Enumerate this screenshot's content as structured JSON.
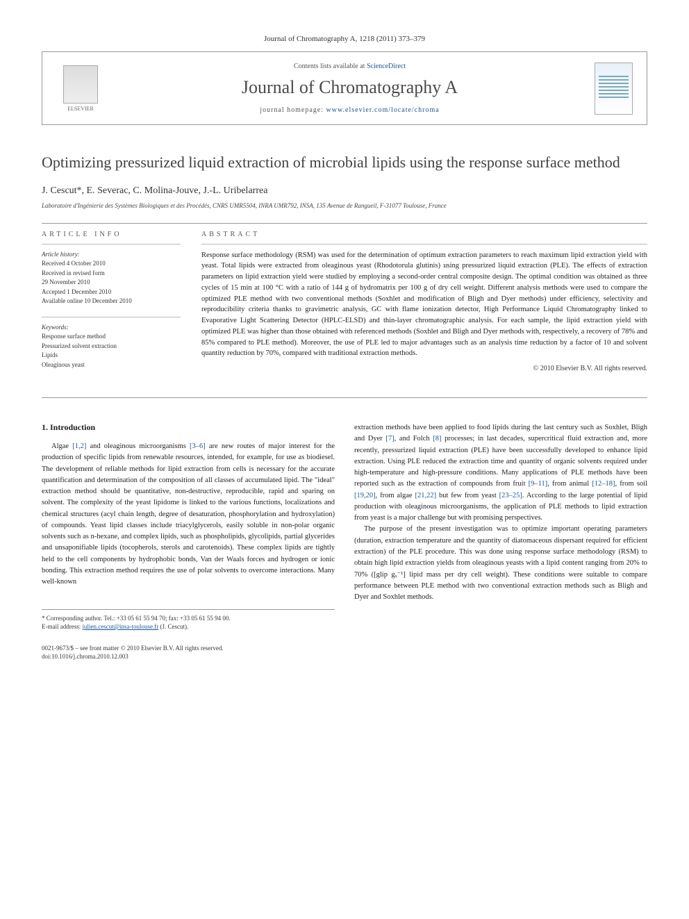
{
  "journal_header": "Journal of Chromatography A, 1218 (2011) 373–379",
  "header": {
    "elsevier_label": "ELSEVIER",
    "contents_prefix": "Contents lists available at ",
    "contents_link": "ScienceDirect",
    "journal_name": "Journal of Chromatography A",
    "homepage_prefix": "journal homepage: ",
    "homepage_url": "www.elsevier.com/locate/chroma"
  },
  "title": "Optimizing pressurized liquid extraction of microbial lipids using the response surface method",
  "authors": "J. Cescut*, E. Severac, C. Molina-Jouve, J.-L. Uribelarrea",
  "affiliation": "Laboratoire d'Ingénierie des Systèmes Biologiques et des Procédés, CNRS UMR5504, INRA UMR792, INSA, 135 Avenue de Rangueil, F-31077 Toulouse, France",
  "info": {
    "heading": "ARTICLE INFO",
    "history_label": "Article history:",
    "history": [
      "Received 4 October 2010",
      "Received in revised form",
      "29 November 2010",
      "Accepted 1 December 2010",
      "Available online 10 December 2010"
    ],
    "keywords_label": "Keywords:",
    "keywords": [
      "Response surface method",
      "Pressurized solvent extraction",
      "Lipids",
      "Oleaginous yeast"
    ]
  },
  "abstract": {
    "heading": "ABSTRACT",
    "text": "Response surface methodology (RSM) was used for the determination of optimum extraction parameters to reach maximum lipid extraction yield with yeast. Total lipids were extracted from oleaginous yeast (Rhodotorula glutinis) using pressurized liquid extraction (PLE). The effects of extraction parameters on lipid extraction yield were studied by employing a second-order central composite design. The optimal condition was obtained as three cycles of 15 min at 100 °C with a ratio of 144 g of hydromatrix per 100 g of dry cell weight. Different analysis methods were used to compare the optimized PLE method with two conventional methods (Soxhlet and modification of Bligh and Dyer methods) under efficiency, selectivity and reproducibility criteria thanks to gravimetric analysis, GC with flame ionization detector, High Performance Liquid Chromatography linked to Evaporative Light Scattering Detector (HPLC-ELSD) and thin-layer chromatographic analysis. For each sample, the lipid extraction yield with optimized PLE was higher than those obtained with referenced methods (Soxhlet and Bligh and Dyer methods with, respectively, a recovery of 78% and 85% compared to PLE method). Moreover, the use of PLE led to major advantages such as an analysis time reduction by a factor of 10 and solvent quantity reduction by 70%, compared with traditional extraction methods.",
    "copyright": "© 2010 Elsevier B.V. All rights reserved."
  },
  "body": {
    "section1_heading": "1. Introduction",
    "col1_p1_a": "Algae ",
    "col1_ref1": "[1,2]",
    "col1_p1_b": " and oleaginous microorganisms ",
    "col1_ref2": "[3–6]",
    "col1_p1_c": " are new routes of major interest for the production of specific lipids from renewable resources, intended, for example, for use as biodiesel. The development of reliable methods for lipid extraction from cells is necessary for the accurate quantification and determination of the composition of all classes of accumulated lipid. The \"ideal\" extraction method should be quantitative, non-destructive, reproducible, rapid and sparing on solvent. The complexity of the yeast lipidome is linked to the various functions, localizations and chemical structures (acyl chain length, degree of desaturation, phosphorylation and hydroxylation) of compounds. Yeast lipid classes include triacylglycerols, easily soluble in non-polar organic solvents such as n-hexane, and complex lipids, such as phospholipids, glycolipids, partial glycerides and unsaponifiable lipids (tocopherols, sterols and carotenoids). These complex lipids are tightly held to the cell components by hydrophobic bonds, Van der Waals forces and hydrogen or ionic bonding. This extraction method requires the use of polar solvents to overcome interactions. Many well-known",
    "col2_p1_a": "extraction methods have been applied to food lipids during the last century such as Soxhlet, Bligh and Dyer ",
    "col2_ref7": "[7]",
    "col2_p1_b": ", and Folch ",
    "col2_ref8": "[8]",
    "col2_p1_c": " processes; in last decades, supercritical fluid extraction and, more recently, pressurized liquid extraction (PLE) have been successfully developed to enhance lipid extraction. Using PLE reduced the extraction time and quantity of organic solvents required under high-temperature and high-pressure conditions. Many applications of PLE methods have been reported such as the extraction of compounds from fruit ",
    "col2_ref9": "[9–11]",
    "col2_p1_d": ", from animal ",
    "col2_ref12": "[12–18]",
    "col2_p1_e": ", from soil ",
    "col2_ref19": "[19,20]",
    "col2_p1_f": ", from algae ",
    "col2_ref21": "[21,22]",
    "col2_p1_g": " but few from yeast ",
    "col2_ref23": "[23–25]",
    "col2_p1_h": ". According to the large potential of lipid production with oleaginous microorganisms, the application of PLE methods to lipid extraction from yeast is a major challenge but with promising perspectives.",
    "col2_p2": "The purpose of the present investigation was to optimize important operating parameters (duration, extraction temperature and the quantity of diatomaceous dispersant required for efficient extraction) of the PLE procedure. This was done using response surface methodology (RSM) to obtain high lipid extraction yields from oleaginous yeasts with a lipid content ranging from 20% to 70% ([glip gₓ⁻¹] lipid mass per dry cell weight). These conditions were suitable to compare performance between PLE method with two conventional extraction methods such as Bligh and Dyer and Soxhlet methods."
  },
  "footnote": {
    "corr_label": "* Corresponding author. Tel.: +33 05 61 55 94 70; fax: +33 05 61 55 94 00.",
    "email_label": "E-mail address: ",
    "email": "julien.cescut@insa-toulouse.fr",
    "email_suffix": " (J. Cescut)."
  },
  "footer": {
    "line1": "0021-9673/$ – see front matter © 2010 Elsevier B.V. All rights reserved.",
    "line2": "doi:10.1016/j.chroma.2010.12.003"
  },
  "colors": {
    "link": "#1a5490",
    "text": "#222222",
    "heading": "#404040",
    "border": "#999999"
  }
}
